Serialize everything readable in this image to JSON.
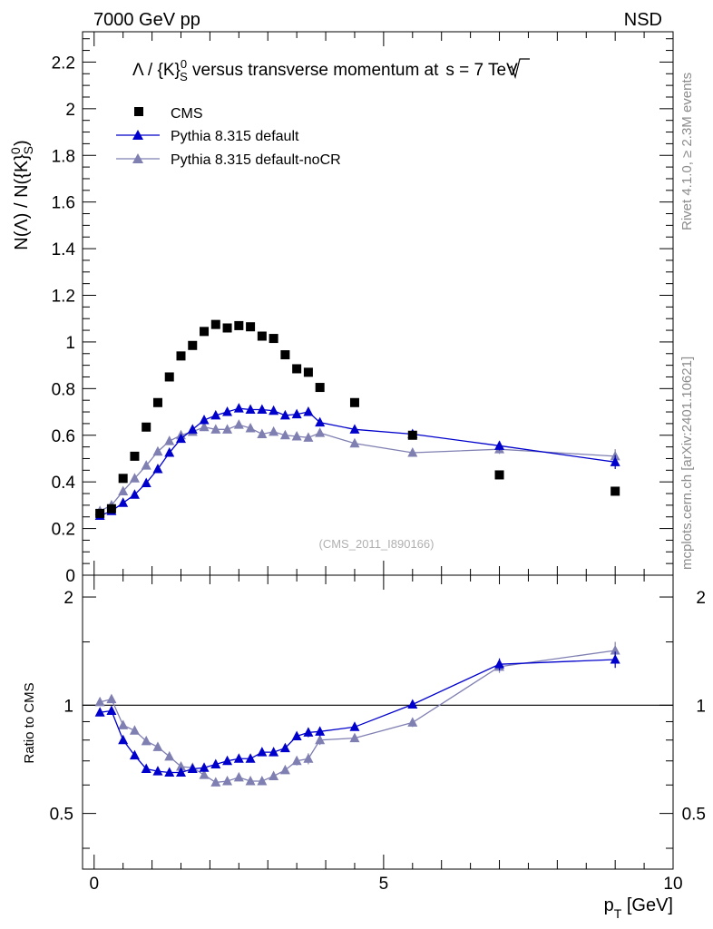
{
  "header": {
    "left": "7000 GeV pp",
    "right": "NSD"
  },
  "colors": {
    "cms": "#000000",
    "pythia_default": "#0000cc",
    "pythia_nocr": "#7f7fb2"
  },
  "chart_data": [
    {
      "panel": "main",
      "type": "scatter",
      "title": "Λ / {K}⁰S versus transverse momentum at √s = 7 TeV",
      "title_parts": {
        "pre": "Λ / {K}",
        "sup": "0",
        "sub": "S",
        "mid": " versus transverse momentum at",
        "sqrt_var": "s",
        "post": " = 7 TeV"
      },
      "ylabel_parts": {
        "pre": "N(Λ)  /  N({K}",
        "sup": "0",
        "sub": "S",
        "post": ")"
      },
      "ylabel": "N(Λ) / N({K}⁰S)",
      "xlim": [
        -0.2,
        10
      ],
      "ylim": [
        0,
        2.33
      ],
      "yticks": [
        "0",
        "0.2",
        "0.4",
        "0.6",
        "0.8",
        "1",
        "1.2",
        "1.4",
        "1.6",
        "1.8",
        "2",
        "2.2"
      ],
      "annotation": "(CMS_2011_I890166)",
      "legend": [
        {
          "key": "cms",
          "label": "CMS"
        },
        {
          "key": "pythia_default",
          "label": "Pythia 8.315 default"
        },
        {
          "key": "pythia_nocr",
          "label": "Pythia 8.315 default-noCR"
        }
      ],
      "series": [
        {
          "key": "cms",
          "name": "CMS",
          "x": [
            0.1,
            0.3,
            0.5,
            0.7,
            0.9,
            1.1,
            1.3,
            1.5,
            1.7,
            1.9,
            2.1,
            2.3,
            2.5,
            2.7,
            2.9,
            3.1,
            3.3,
            3.5,
            3.7,
            3.9,
            4.5,
            5.5,
            7.0,
            9.0
          ],
          "y": [
            0.265,
            0.285,
            0.415,
            0.51,
            0.635,
            0.74,
            0.85,
            0.94,
            0.985,
            1.045,
            1.075,
            1.06,
            1.07,
            1.065,
            1.025,
            1.015,
            0.945,
            0.885,
            0.87,
            0.805,
            0.74,
            0.6,
            0.43,
            0.36
          ]
        },
        {
          "key": "pythia_default",
          "name": "Pythia 8.315 default",
          "x": [
            0.1,
            0.3,
            0.5,
            0.7,
            0.9,
            1.1,
            1.3,
            1.5,
            1.7,
            1.9,
            2.1,
            2.3,
            2.5,
            2.7,
            2.9,
            3.1,
            3.3,
            3.5,
            3.7,
            3.9,
            4.5,
            5.5,
            7.0,
            9.0
          ],
          "y": [
            0.255,
            0.275,
            0.31,
            0.345,
            0.395,
            0.455,
            0.525,
            0.585,
            0.625,
            0.665,
            0.685,
            0.7,
            0.715,
            0.71,
            0.71,
            0.705,
            0.685,
            0.69,
            0.7,
            0.655,
            0.625,
            0.605,
            0.555,
            0.485
          ],
          "err": [
            0.015,
            0.015,
            0.01,
            0.01,
            0.01,
            0.01,
            0.01,
            0.01,
            0.01,
            0.01,
            0.01,
            0.01,
            0.01,
            0.01,
            0.01,
            0.01,
            0.012,
            0.012,
            0.015,
            0.015,
            0.01,
            0.012,
            0.02,
            0.03
          ]
        },
        {
          "key": "pythia_nocr",
          "name": "Pythia 8.315 default-noCR",
          "x": [
            0.1,
            0.3,
            0.5,
            0.7,
            0.9,
            1.1,
            1.3,
            1.5,
            1.7,
            1.9,
            2.1,
            2.3,
            2.5,
            2.7,
            2.9,
            3.1,
            3.3,
            3.5,
            3.7,
            3.9,
            4.5,
            5.5,
            7.0,
            9.0
          ],
          "y": [
            0.275,
            0.3,
            0.36,
            0.415,
            0.47,
            0.53,
            0.575,
            0.6,
            0.615,
            0.635,
            0.625,
            0.625,
            0.645,
            0.63,
            0.605,
            0.615,
            0.6,
            0.595,
            0.59,
            0.61,
            0.565,
            0.525,
            0.54,
            0.51
          ],
          "err": [
            0.015,
            0.012,
            0.01,
            0.01,
            0.01,
            0.01,
            0.01,
            0.01,
            0.01,
            0.01,
            0.01,
            0.01,
            0.01,
            0.01,
            0.01,
            0.01,
            0.012,
            0.012,
            0.012,
            0.015,
            0.01,
            0.015,
            0.02,
            0.03
          ]
        }
      ]
    },
    {
      "panel": "ratio",
      "type": "line",
      "ylabel": "Ratio to CMS",
      "xlabel_parts": {
        "pre": "p",
        "sub": "T",
        "post": " [GeV]"
      },
      "xlabel": "pT [GeV]",
      "xlim": [
        -0.2,
        10
      ],
      "ylim": [
        0.35,
        2.3
      ],
      "xticks": [
        0,
        5,
        10
      ],
      "xtick_labels": [
        "0",
        "5",
        "10"
      ],
      "yticks": [
        0.5,
        1,
        2
      ],
      "ytick_labels": [
        "0.5",
        "1",
        "2"
      ],
      "reference_line": 1,
      "series": [
        {
          "key": "pythia_default",
          "name": "Pythia 8.315 default",
          "x": [
            0.1,
            0.3,
            0.5,
            0.7,
            0.9,
            1.1,
            1.3,
            1.5,
            1.7,
            1.9,
            2.1,
            2.3,
            2.5,
            2.7,
            2.9,
            3.1,
            3.3,
            3.5,
            3.7,
            3.9,
            4.5,
            5.5,
            7.0,
            9.0
          ],
          "y": [
            0.955,
            0.965,
            0.8,
            0.725,
            0.665,
            0.655,
            0.65,
            0.65,
            0.665,
            0.67,
            0.685,
            0.7,
            0.71,
            0.71,
            0.74,
            0.74,
            0.76,
            0.82,
            0.84,
            0.845,
            0.87,
            1.005,
            1.3,
            1.34
          ],
          "err": [
            0.02,
            0.02,
            0.012,
            0.01,
            0.01,
            0.01,
            0.01,
            0.01,
            0.01,
            0.01,
            0.01,
            0.01,
            0.01,
            0.01,
            0.012,
            0.012,
            0.015,
            0.02,
            0.025,
            0.025,
            0.015,
            0.025,
            0.05,
            0.07
          ]
        },
        {
          "key": "pythia_nocr",
          "name": "Pythia 8.315 default-noCR",
          "x": [
            0.1,
            0.3,
            0.5,
            0.7,
            0.9,
            1.1,
            1.3,
            1.5,
            1.7,
            1.9,
            2.1,
            2.3,
            2.5,
            2.7,
            2.9,
            3.1,
            3.3,
            3.5,
            3.7,
            3.9,
            4.5,
            5.5,
            7.0,
            9.0
          ],
          "y": [
            1.02,
            1.04,
            0.88,
            0.85,
            0.795,
            0.765,
            0.72,
            0.675,
            0.67,
            0.64,
            0.61,
            0.615,
            0.63,
            0.615,
            0.615,
            0.635,
            0.66,
            0.7,
            0.71,
            0.8,
            0.81,
            0.895,
            1.28,
            1.42
          ],
          "err": [
            0.02,
            0.015,
            0.012,
            0.01,
            0.01,
            0.01,
            0.01,
            0.01,
            0.01,
            0.01,
            0.01,
            0.01,
            0.01,
            0.01,
            0.012,
            0.012,
            0.015,
            0.02,
            0.025,
            0.025,
            0.015,
            0.025,
            0.05,
            0.08
          ]
        }
      ]
    }
  ],
  "side_text": {
    "rivet": "Rivet 4.1.0, ≥ 2.3M events",
    "mcplots": "mcplots.cern.ch [arXiv:2401.10621]"
  }
}
